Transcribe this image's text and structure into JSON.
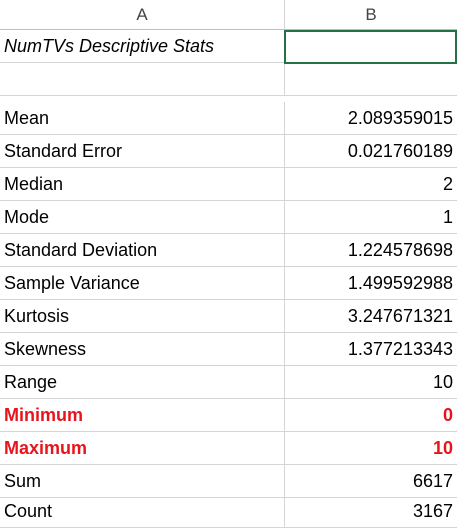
{
  "columns": [
    "A",
    "B"
  ],
  "title": "NumTVs Descriptive Stats",
  "stats": [
    {
      "label": "Mean",
      "value": "2.089359015",
      "highlight": false
    },
    {
      "label": "Standard Error",
      "value": "0.021760189",
      "highlight": false
    },
    {
      "label": "Median",
      "value": "2",
      "highlight": false
    },
    {
      "label": "Mode",
      "value": "1",
      "highlight": false
    },
    {
      "label": "Standard Deviation",
      "value": "1.224578698",
      "highlight": false
    },
    {
      "label": "Sample Variance",
      "value": "1.499592988",
      "highlight": false
    },
    {
      "label": "Kurtosis",
      "value": "3.247671321",
      "highlight": false
    },
    {
      "label": "Skewness",
      "value": "1.377213343",
      "highlight": false
    },
    {
      "label": "Range",
      "value": "10",
      "highlight": false
    },
    {
      "label": "Minimum",
      "value": "0",
      "highlight": true
    },
    {
      "label": "Maximum",
      "value": "10",
      "highlight": true
    },
    {
      "label": "Sum",
      "value": "6617",
      "highlight": false
    },
    {
      "label": "Count",
      "value": "3167",
      "highlight": false
    }
  ],
  "colors": {
    "highlight": "#e8141c",
    "selection": "#217346"
  }
}
